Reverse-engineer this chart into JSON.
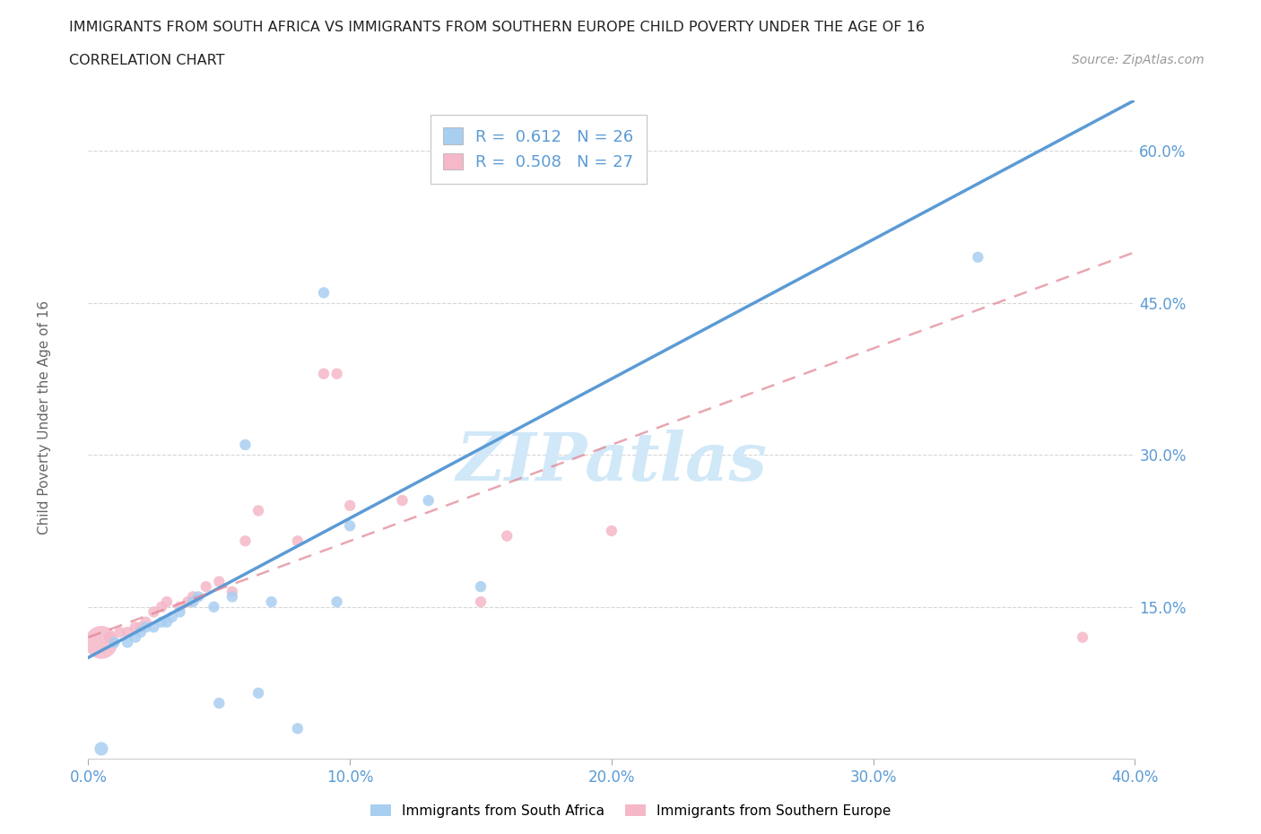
{
  "title": "IMMIGRANTS FROM SOUTH AFRICA VS IMMIGRANTS FROM SOUTHERN EUROPE CHILD POVERTY UNDER THE AGE OF 16",
  "subtitle": "CORRELATION CHART",
  "source": "Source: ZipAtlas.com",
  "ylabel": "Child Poverty Under the Age of 16",
  "xlim": [
    0.0,
    0.4
  ],
  "ylim": [
    0.0,
    0.65
  ],
  "yticks": [
    0.15,
    0.3,
    0.45,
    0.6
  ],
  "xticks": [
    0.0,
    0.1,
    0.2,
    0.3,
    0.4
  ],
  "r_blue": 0.612,
  "n_blue": 26,
  "r_pink": 0.508,
  "n_pink": 27,
  "color_blue": "#a8cef0",
  "color_pink": "#f5b8c8",
  "line_blue": "#5b9bd5",
  "line_pink": "#e08090",
  "legend_label_blue": "Immigrants from South Africa",
  "legend_label_pink": "Immigrants from Southern Europe",
  "watermark": "ZIPatlas",
  "watermark_color": "#d0e8f8",
  "blue_scatter_x": [
    0.005,
    0.01,
    0.015,
    0.018,
    0.02,
    0.022,
    0.025,
    0.028,
    0.03,
    0.032,
    0.035,
    0.04,
    0.042,
    0.048,
    0.05,
    0.055,
    0.06,
    0.065,
    0.07,
    0.08,
    0.09,
    0.095,
    0.1,
    0.13,
    0.15,
    0.34
  ],
  "blue_scatter_y": [
    0.01,
    0.115,
    0.115,
    0.12,
    0.125,
    0.13,
    0.13,
    0.135,
    0.135,
    0.14,
    0.145,
    0.155,
    0.16,
    0.15,
    0.055,
    0.16,
    0.31,
    0.065,
    0.155,
    0.03,
    0.46,
    0.155,
    0.23,
    0.255,
    0.17,
    0.495
  ],
  "blue_scatter_size": [
    120,
    80,
    80,
    80,
    80,
    80,
    80,
    80,
    80,
    80,
    80,
    80,
    80,
    80,
    80,
    80,
    80,
    80,
    80,
    80,
    80,
    80,
    80,
    80,
    80,
    80
  ],
  "pink_scatter_x": [
    0.005,
    0.008,
    0.012,
    0.015,
    0.018,
    0.02,
    0.022,
    0.025,
    0.028,
    0.03,
    0.035,
    0.038,
    0.04,
    0.045,
    0.05,
    0.055,
    0.06,
    0.065,
    0.08,
    0.09,
    0.095,
    0.1,
    0.12,
    0.15,
    0.16,
    0.2,
    0.38
  ],
  "pink_scatter_y": [
    0.115,
    0.12,
    0.125,
    0.125,
    0.13,
    0.13,
    0.135,
    0.145,
    0.15,
    0.155,
    0.15,
    0.155,
    0.16,
    0.17,
    0.175,
    0.165,
    0.215,
    0.245,
    0.215,
    0.38,
    0.38,
    0.25,
    0.255,
    0.155,
    0.22,
    0.225,
    0.12
  ],
  "pink_scatter_size": [
    700,
    80,
    80,
    80,
    80,
    80,
    80,
    80,
    80,
    80,
    80,
    80,
    80,
    80,
    80,
    80,
    80,
    80,
    80,
    80,
    80,
    80,
    80,
    80,
    80,
    80,
    80
  ],
  "blue_line_x0": 0.0,
  "blue_line_y0": 0.1,
  "blue_line_x1": 0.4,
  "blue_line_y1": 0.65,
  "pink_line_x0": 0.0,
  "pink_line_y0": 0.12,
  "pink_line_x1": 0.4,
  "pink_line_y1": 0.5,
  "background_color": "#ffffff",
  "grid_color": "#cccccc",
  "tick_label_color": "#5b9bd5",
  "ylabel_color": "#666666"
}
